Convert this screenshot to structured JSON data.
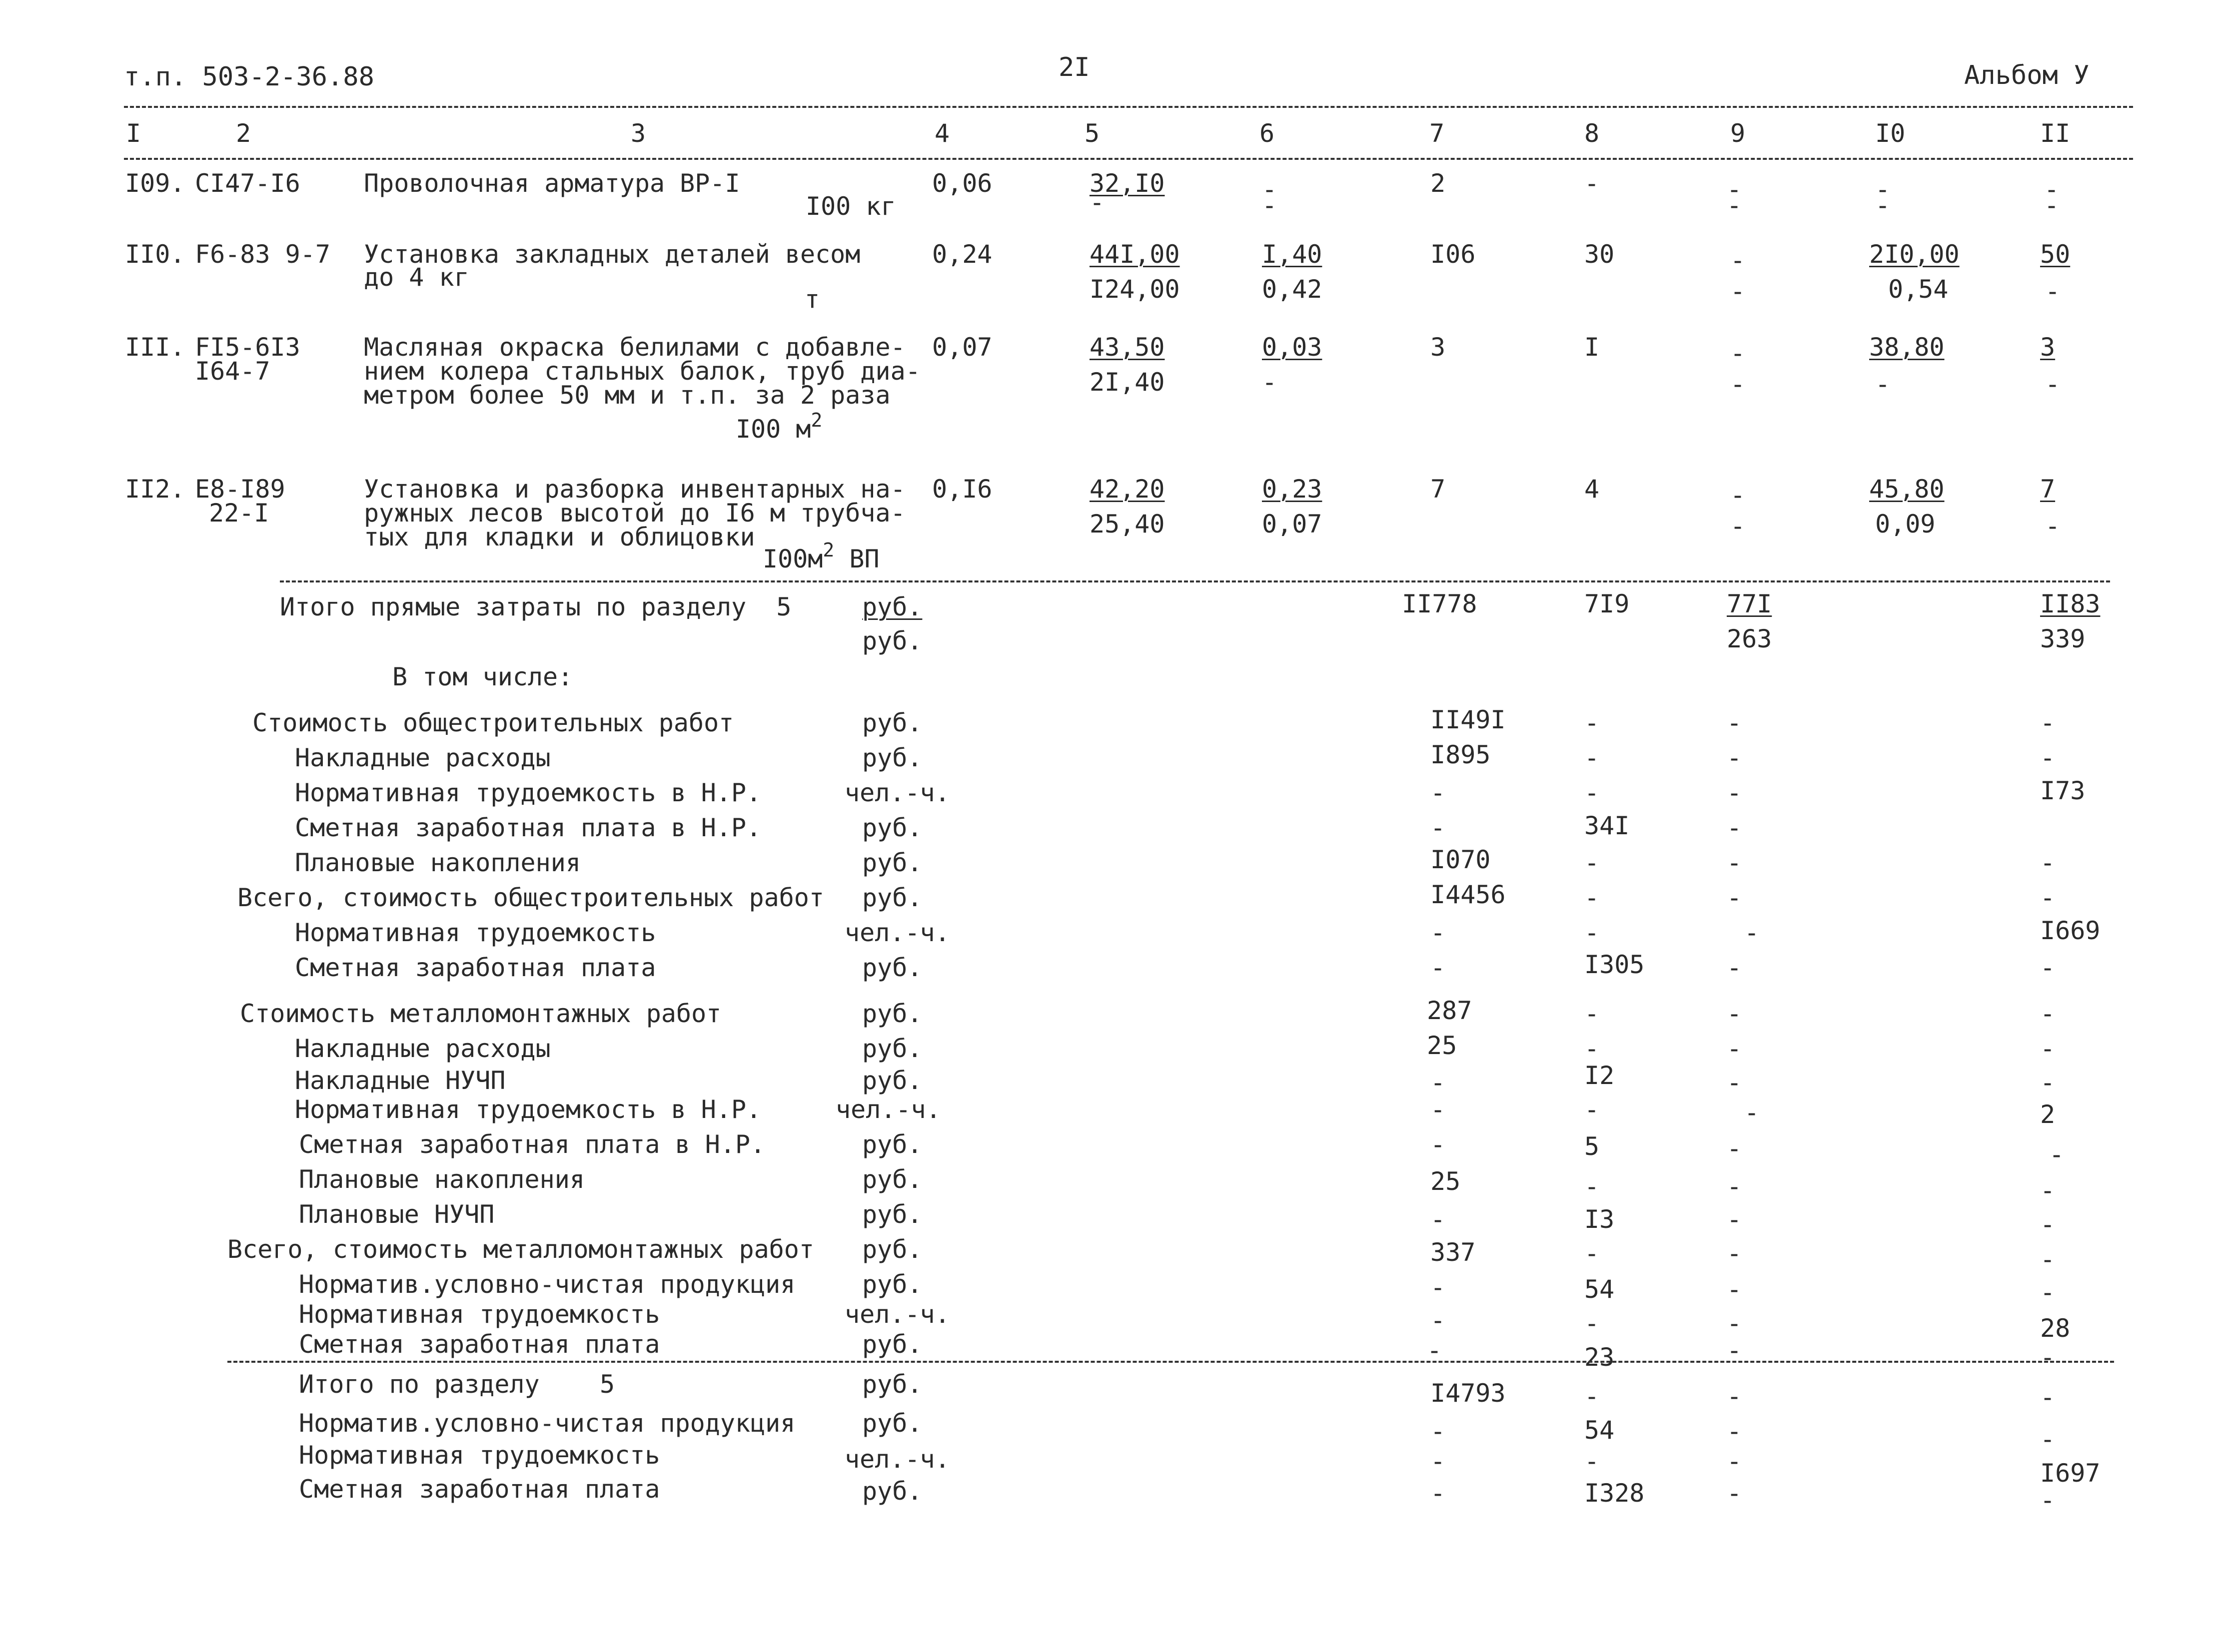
{
  "header": {
    "left": "т.п. 503-2-36.88",
    "page": "2I",
    "right": "Альбом У"
  },
  "columns": [
    "I",
    "2",
    "3",
    "4",
    "5",
    "6",
    "7",
    "8",
    "9",
    "I0",
    "II"
  ],
  "rows": [
    {
      "num": "I09.",
      "code": "CI47-I6",
      "desc": [
        "Проволочная арматура ВР-I"
      ],
      "unit": "I00 кг",
      "c4": "0,06",
      "c5a": "32,I0",
      "c5b": "-",
      "c6a": "-",
      "c6b": "-",
      "c7": "2",
      "c8": "-",
      "c9a": "-",
      "c9b": "-",
      "c10a": "-",
      "c10b": "-",
      "c11a": "-",
      "c11b": "-"
    },
    {
      "num": "II0.",
      "code": "F6-83 9-7",
      "desc": [
        "Установка закладных деталей весом",
        "до 4 кг"
      ],
      "unit": "т",
      "c4": "0,24",
      "c5a": "44I,00",
      "c5b": "I24,00",
      "c6a": "I,40",
      "c6b": "0,42",
      "c7": "I06",
      "c8": "30",
      "c9a": "-",
      "c9b": "-",
      "c10a": "2I0,00",
      "c10b": "0,54",
      "c11a": "50",
      "c11b": "-"
    },
    {
      "num": "III.",
      "code": "FI5-6I3",
      "code2": "I64-7",
      "desc": [
        "Масляная окраска белилами с добавле-",
        "нием колера стальных балок, труб диа-",
        "метром более 50 мм и т.п. за 2 раза"
      ],
      "unit": "I00 м",
      "unit_sup": "2",
      "c4": "0,07",
      "c5a": "43,50",
      "c5b": "2I,40",
      "c6a": "0,03",
      "c6b": "-",
      "c7": "3",
      "c8": "I",
      "c9a": "-",
      "c9b": "-",
      "c10a": "38,80",
      "c10b": "-",
      "c11a": "3",
      "c11b": "-"
    },
    {
      "num": "II2.",
      "code": "E8-I89",
      "code2": "22-I",
      "desc": [
        "Установка и разборка инвентарных на-",
        "ружных лесов высотой до I6 м трубча-",
        "тых для кладки и облицовки"
      ],
      "unit": "I00м",
      "unit_sup": "2",
      "unit_tail": " ВП",
      "c4": "0,I6",
      "c5a": "42,20",
      "c5b": "25,40",
      "c6a": "0,23",
      "c6b": "0,07",
      "c7": "7",
      "c8": "4",
      "c9a": "-",
      "c9b": "-",
      "c10a": "45,80",
      "c10b": "0,09",
      "c11a": "7",
      "c11b": "-"
    }
  ],
  "summary": [
    {
      "label": "Итого прямые затраты по разделу  5",
      "unit": "руб.",
      "c7": "II778",
      "c8": "7I9",
      "c9": "77I",
      "c11": "II83"
    },
    {
      "label": "",
      "unit": "руб.",
      "c7": "",
      "c8": "",
      "c9": "263",
      "c11": "339"
    },
    {
      "label": "В том числе:",
      "unit": "",
      "c7": "",
      "c8": "",
      "c9": "",
      "c11": ""
    },
    {
      "label": "Стоимость общестроительных работ",
      "unit": "руб.",
      "c7": "II49I",
      "c8": "-",
      "c9": "-",
      "c11": "-"
    },
    {
      "label": "Накладные расходы",
      "unit": "руб.",
      "c7": "I895",
      "c8": "-",
      "c9": "-",
      "c11": "-"
    },
    {
      "label": "Нормативная трудоемкость в Н.Р.",
      "unit": "чел.-ч.",
      "c7": "-",
      "c8": "-",
      "c9": "-",
      "c11": "I73"
    },
    {
      "label": "Сметная заработная плата в Н.Р.",
      "unit": "руб.",
      "c7": "-",
      "c8": "34I",
      "c9": "-",
      "c11": ""
    },
    {
      "label": "Плановые накопления",
      "unit": "руб.",
      "c7": "I070",
      "c8": "-",
      "c9": "-",
      "c11": "-"
    },
    {
      "label": "Всего, стоимость общестроительных работ",
      "unit": "руб.",
      "c7": "I4456",
      "c8": "-",
      "c9": "-",
      "c11": "-"
    },
    {
      "label": "Нормативная трудоемкость",
      "unit": "чел.-ч.",
      "c7": "-",
      "c8": "-",
      "c9": "-",
      "c11": "I669"
    },
    {
      "label": "Сметная заработная плата",
      "unit": "руб.",
      "c7": "-",
      "c8": "I305",
      "c9": "-",
      "c11": "-"
    },
    {
      "label": "Стоимость металломонтажных работ",
      "unit": "руб.",
      "c7": "287",
      "c8": "-",
      "c9": "-",
      "c11": "-"
    },
    {
      "label": "Накладные расходы",
      "unit": "руб.",
      "c7": "25",
      "c8": "-",
      "c9": "-",
      "c11": "-"
    },
    {
      "label": "Накладные НУЧП",
      "unit": "руб.",
      "c7": "-",
      "c8": "I2",
      "c9": "-",
      "c11": "-"
    },
    {
      "label": "Нормативная трудоемкость в Н.Р.",
      "unit": "чел.-ч.",
      "c7": "-",
      "c8": "-",
      "c9": "-",
      "c11": "2"
    },
    {
      "label": "Сметная заработная плата в Н.Р.",
      "unit": "руб.",
      "c7": "-",
      "c8": "5",
      "c9": "-",
      "c11": "-"
    },
    {
      "label": "Плановые накопления",
      "unit": "руб.",
      "c7": "25",
      "c8": "-",
      "c9": "-",
      "c11": "-"
    },
    {
      "label": "Плановые НУЧП",
      "unit": "руб.",
      "c7": "-",
      "c8": "I3",
      "c9": "-",
      "c11": "-"
    },
    {
      "label": "Всего, стоимость металломонтажных работ",
      "unit": "руб.",
      "c7": "337",
      "c8": "-",
      "c9": "-",
      "c11": "-"
    },
    {
      "label": "Норматив.условно-чистая продукция",
      "unit": "руб.",
      "c7": "-",
      "c8": "54",
      "c9": "-",
      "c11": "-"
    },
    {
      "label": "Нормативная трудоемкость",
      "unit": "чел.-ч.",
      "c7": "-",
      "c8": "-",
      "c9": "-",
      "c11": "28"
    },
    {
      "label": "Сметная заработная плата",
      "unit": "руб.",
      "c7": "-",
      "c8": "23",
      "c9": "-",
      "c11": "-"
    },
    {
      "label": "Итого по разделу    5",
      "unit": "руб.",
      "c7": "I4793",
      "c8": "-",
      "c9": "-",
      "c11": "-"
    },
    {
      "label": "Норматив.условно-чистая продукция",
      "unit": "руб.",
      "c7": "-",
      "c8": "54",
      "c9": "-",
      "c11": "-"
    },
    {
      "label": "Нормативная трудоемкость",
      "unit": "чел.-ч.",
      "c7": "-",
      "c8": "-",
      "c9": "-",
      "c11": "I697"
    },
    {
      "label": "Сметная заработная плата",
      "unit": "руб.",
      "c7": "-",
      "c8": "I328",
      "c9": "-",
      "c11": "-"
    }
  ]
}
